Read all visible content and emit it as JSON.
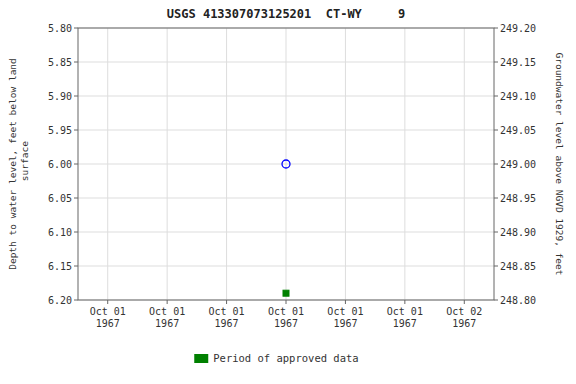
{
  "chart_data": {
    "type": "scatter",
    "title": "USGS 413307073125201  CT-WY     9",
    "y_label": "Depth to water level, feet below land\n surface",
    "y2_label": "Groundwater level above NGVD 1929, feet",
    "categories": [
      "Oct 01\n1967",
      "Oct 01\n1967",
      "Oct 01\n1967",
      "Oct 01\n1967",
      "Oct 01\n1967",
      "Oct 01\n1967",
      "Oct 02\n1967"
    ],
    "series": [
      {
        "color": "blue",
        "marker": "open-circle",
        "values": [
          null,
          null,
          null,
          6.0,
          null,
          null,
          null
        ]
      },
      {
        "name": "Period of approved data",
        "color": "green",
        "marker": "square",
        "values": [
          null,
          null,
          null,
          6.19,
          null,
          null,
          null
        ]
      }
    ],
    "ylim": [
      6.2,
      5.8
    ],
    "yticks": [
      {
        "value": 5.8,
        "label": "5.80"
      },
      {
        "value": 5.85,
        "label": "5.85"
      },
      {
        "value": 5.9,
        "label": "5.90"
      },
      {
        "value": 5.95,
        "label": "5.95"
      },
      {
        "value": 6.0,
        "label": "6.00"
      },
      {
        "value": 6.05,
        "label": "6.05"
      },
      {
        "value": 6.1,
        "label": "6.10"
      },
      {
        "value": 6.15,
        "label": "6.15"
      },
      {
        "value": 6.2,
        "label": "6.20"
      }
    ],
    "y2lim": [
      248.8,
      249.2
    ],
    "y2ticks": [
      {
        "value": 249.2,
        "label": "249.20"
      },
      {
        "value": 249.15,
        "label": "249.15"
      },
      {
        "value": 249.1,
        "label": "249.10"
      },
      {
        "value": 249.05,
        "label": "249.05"
      },
      {
        "value": 249.0,
        "label": "249.00"
      },
      {
        "value": 248.95,
        "label": "248.95"
      },
      {
        "value": 248.9,
        "label": "248.90"
      },
      {
        "value": 248.85,
        "label": "248.85"
      },
      {
        "value": 248.8,
        "label": "248.80"
      }
    ],
    "grid": true,
    "legend": "bottom"
  }
}
